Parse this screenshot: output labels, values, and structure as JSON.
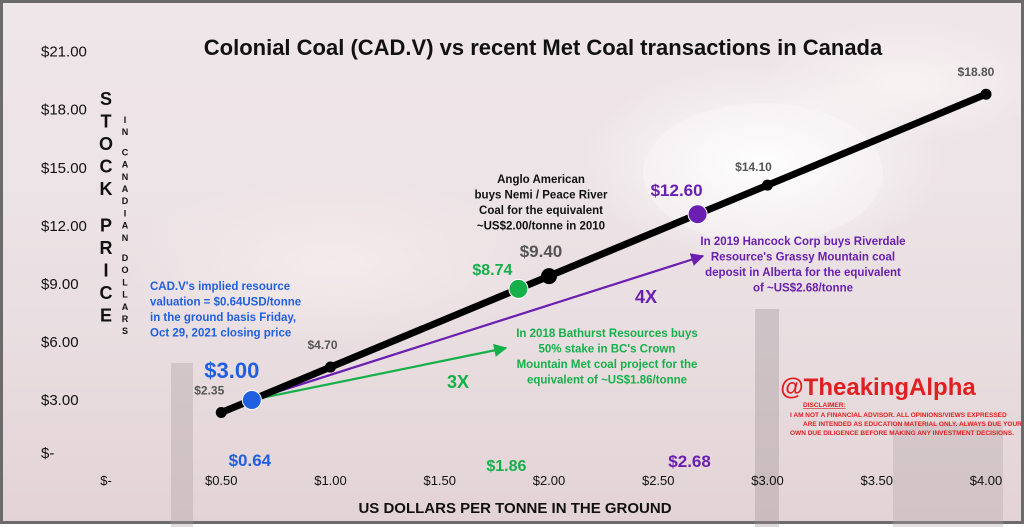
{
  "colors": {
    "main_line": "#000000",
    "blue": "#2060e0",
    "green": "#16b04a",
    "purple": "#6a1fb0",
    "brand_red": "#e02020",
    "value_gray": "#555555"
  },
  "chart_data": {
    "type": "line",
    "title": "Colonial Coal (CAD.V) vs recent Met Coal transactions in Canada",
    "xlabel": "US DOLLARS PER TONNE IN THE GROUND",
    "ylabel_big": "STOCK PRICE",
    "ylabel_small": "IN CANADIAN DOLLARS",
    "xlim": [
      0,
      4
    ],
    "ylim": [
      0,
      21
    ],
    "x_ticks": [
      0,
      0.5,
      1,
      1.5,
      2,
      2.5,
      3,
      3.5,
      4
    ],
    "x_tick_labels": [
      "$-",
      "$0.50",
      "$1.00",
      "$1.50",
      "$2.00",
      "$2.50",
      "$3.00",
      "$3.50",
      "$4.00"
    ],
    "y_ticks": [
      0,
      3,
      6,
      9,
      12,
      15,
      18,
      21
    ],
    "y_tick_labels": [
      "$-",
      "$3.00",
      "$6.00",
      "$9.00",
      "$12.00",
      "$15.00",
      "$18.00",
      "$21.00"
    ],
    "grid": false,
    "series": [
      {
        "points": [
          {
            "x": 0.5,
            "y": 2.35,
            "label": "$2.35"
          },
          {
            "x": 0.64,
            "y": 3.0
          },
          {
            "x": 1.0,
            "y": 4.7,
            "label": "$4.70"
          },
          {
            "x": 1.86,
            "y": 8.74
          },
          {
            "x": 2.0,
            "y": 9.4
          },
          {
            "x": 2.68,
            "y": 12.6
          },
          {
            "x": 3.0,
            "y": 14.1,
            "label": "$14.10"
          },
          {
            "x": 4.0,
            "y": 18.8,
            "label": "$18.80"
          }
        ]
      }
    ],
    "highlights": [
      {
        "key": "cad",
        "x": 0.64,
        "y": 3.0,
        "price_label": "$3.00",
        "x_label": "$0.64",
        "color": "blue"
      },
      {
        "key": "bathurst",
        "x": 1.86,
        "y": 8.74,
        "price_label": "$8.74",
        "x_label": "$1.86",
        "color": "green"
      },
      {
        "key": "anglo",
        "x": 2.0,
        "y": 9.4,
        "price_label": "$9.40",
        "color": "value_gray"
      },
      {
        "key": "hancock",
        "x": 2.68,
        "y": 12.6,
        "price_label": "$12.60",
        "x_label": "$2.68",
        "color": "purple"
      }
    ],
    "multiples": [
      {
        "label": "3X",
        "color": "green"
      },
      {
        "label": "4X",
        "color": "purple"
      }
    ],
    "annotations": {
      "cad": [
        "CAD.V's implied resource",
        "valuation = $0.64USD/tonne",
        "in the ground basis Friday,",
        "Oct 29, 2021 closing price"
      ],
      "anglo": [
        "Anglo American",
        "buys Nemi / Peace River",
        "Coal for the equivalent",
        "~US$2.00/tonne in 2010"
      ],
      "hancock": [
        "In 2019 Hancock Corp buys Riverdale",
        "Resource's Grassy Mountain coal",
        "deposit in Alberta for the equivalent",
        "of ~US$2.68/tonne"
      ],
      "bathurst": [
        "In 2018 Bathurst Resources buys",
        "50% stake in BC's Crown",
        "Mountain Met coal project for the",
        "equivalent of ~US$1.86/tonne"
      ]
    }
  },
  "branding": {
    "handle": "@TheakingAlpha",
    "disclaimer_title": "DISCLAIMER:",
    "disclaimer_lines": [
      "I AM NOT A FINANCIAL ADVISOR.  ALL OPINIONS/VIEWS EXPRESSED",
      "ARE INTENDED AS EDUCATION MATERIAL ONLY. ALWAYS DUE YOUR",
      "OWN DUE DILIGENCE BEFORE MAKING ANY INVESTMENT DECISIONS."
    ]
  }
}
